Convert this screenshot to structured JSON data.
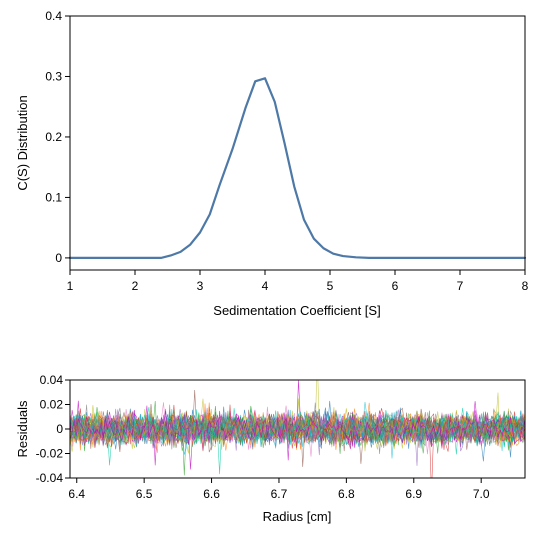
{
  "chart_data": [
    {
      "type": "line",
      "title": "",
      "xlabel": "Sedimentation Coefficient [S]",
      "ylabel": "C(S) Distribution",
      "xlim": [
        1,
        8
      ],
      "ylim": [
        -0.02,
        0.4
      ],
      "xticks": [
        1,
        2,
        3,
        4,
        5,
        6,
        7,
        8
      ],
      "yticks": [
        0,
        0.1,
        0.2,
        0.3,
        0.4
      ],
      "ytick_labels": [
        "0",
        "0.1",
        "0.2",
        "0.3",
        "0.4"
      ],
      "grid": false,
      "color": "#4e79a7",
      "series": [
        {
          "x": [
            1.0,
            2.4,
            2.55,
            2.7,
            2.85,
            3.0,
            3.15,
            3.3,
            3.5,
            3.7,
            3.85,
            4.0,
            4.15,
            4.3,
            4.45,
            4.6,
            4.75,
            4.9,
            5.05,
            5.2,
            5.4,
            5.6,
            6.0,
            7.0,
            8.0
          ],
          "y": [
            0.0,
            0.0,
            0.004,
            0.01,
            0.022,
            0.042,
            0.072,
            0.12,
            0.18,
            0.248,
            0.292,
            0.297,
            0.258,
            0.19,
            0.118,
            0.063,
            0.032,
            0.016,
            0.007,
            0.003,
            0.001,
            0.0,
            0.0,
            0.0,
            0.0
          ]
        }
      ]
    },
    {
      "type": "line",
      "title": "",
      "xlabel": "Radius [cm]",
      "ylabel": "Residuals",
      "xlim": [
        6.39,
        7.065
      ],
      "ylim": [
        -0.04,
        0.04
      ],
      "xticks": [
        6.4,
        6.5,
        6.6,
        6.7,
        6.8,
        6.9,
        7.0
      ],
      "xtick_labels": [
        "6.4",
        "6.5",
        "6.6",
        "6.7",
        "6.8",
        "6.9",
        "7.0"
      ],
      "yticks": [
        -0.04,
        -0.02,
        0,
        0.02,
        0.04
      ],
      "ytick_labels": [
        "-0.04",
        "-0.02",
        "0",
        "0.02",
        "0.04"
      ],
      "grid": false,
      "noise_band_sd": 0.006,
      "scan_colors": [
        "#1f77b4",
        "#2ca02c",
        "#d62728",
        "#9467bd",
        "#ff7f0e",
        "#17becf",
        "#e377c2",
        "#bcbd22",
        "#8c564b",
        "#7f7f7f",
        "#00c8a0",
        "#c000c0"
      ]
    }
  ]
}
